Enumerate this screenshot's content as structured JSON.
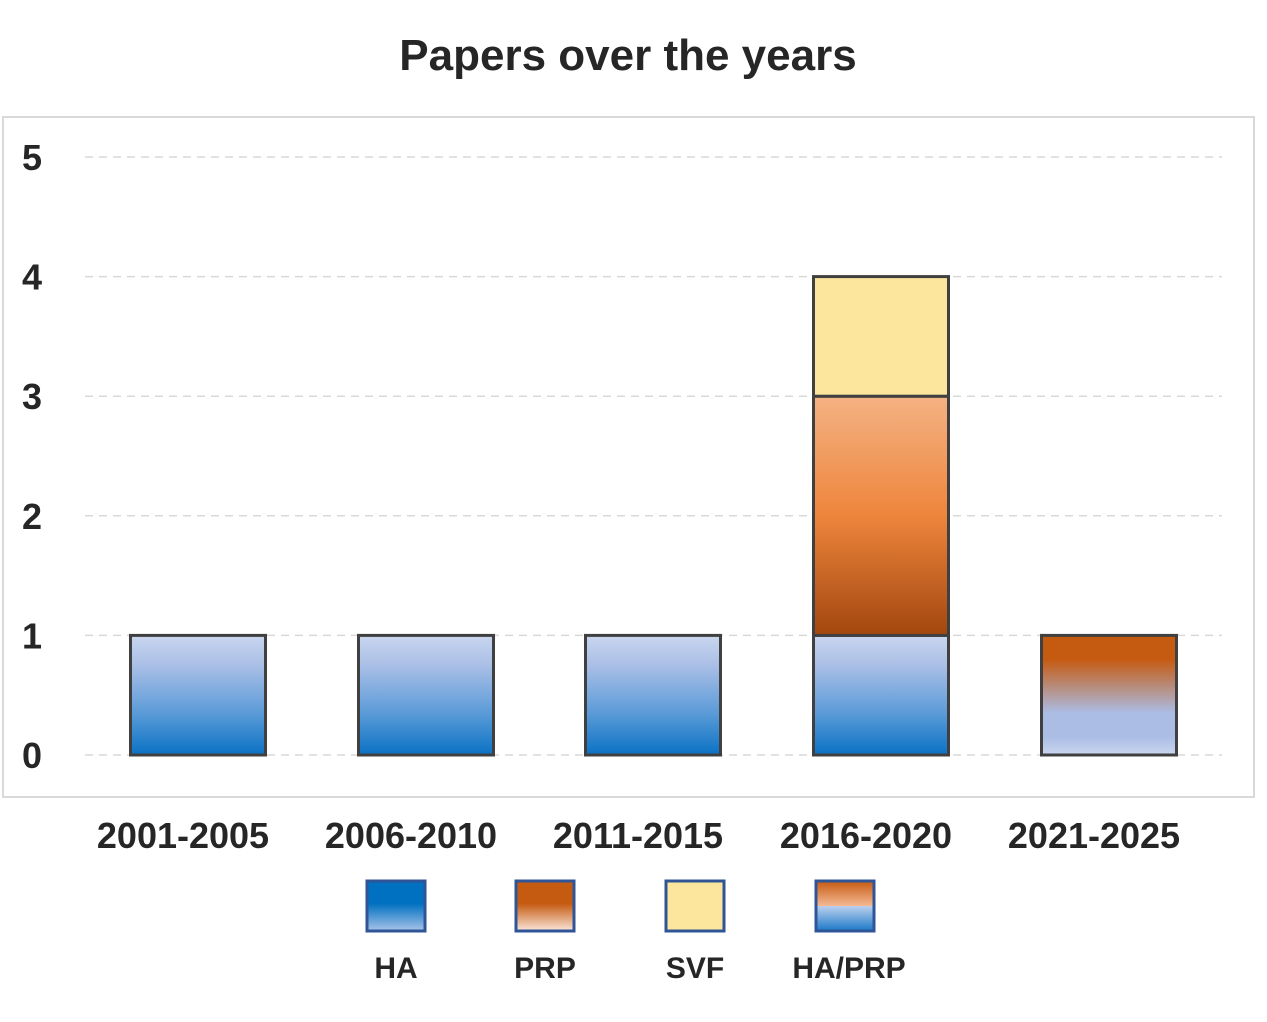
{
  "chart_data": {
    "type": "bar",
    "stacked": true,
    "title": "Papers over the years",
    "xlabel": "",
    "ylabel": "",
    "ylim": [
      0,
      5
    ],
    "yticks": [
      0,
      1,
      2,
      3,
      4,
      5
    ],
    "grid": true,
    "legend_position": "bottom",
    "categories": [
      "2001-2005",
      "2006-2010",
      "2011-2015",
      "2016-2020",
      "2021-2025"
    ],
    "series": [
      {
        "name": "HA",
        "values": [
          1,
          1,
          1,
          1,
          0
        ],
        "color": "#0070C0"
      },
      {
        "name": "PRP",
        "values": [
          0,
          0,
          0,
          2,
          0
        ],
        "color": "#C55A11"
      },
      {
        "name": "SVF",
        "values": [
          0,
          0,
          0,
          1,
          0
        ],
        "color": "#FCE69D"
      },
      {
        "name": "HA/PRP",
        "values": [
          0,
          0,
          0,
          0,
          1
        ],
        "color": "#C55A11"
      }
    ]
  }
}
